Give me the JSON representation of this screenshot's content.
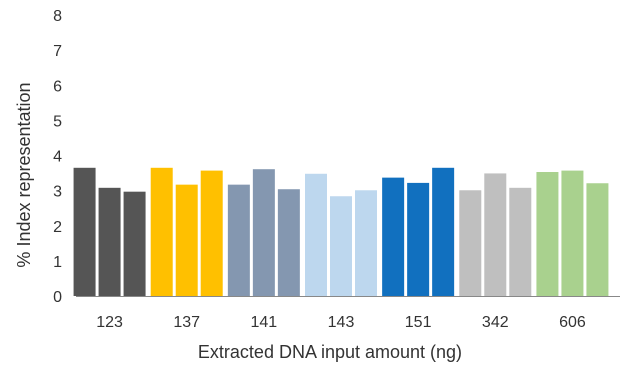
{
  "chart_data": {
    "type": "bar",
    "title": "",
    "xlabel": "Extracted DNA input amount (ng)",
    "ylabel": "% Index representation",
    "ylim": [
      0,
      8
    ],
    "yticks": [
      0,
      1,
      2,
      3,
      4,
      5,
      6,
      7,
      8
    ],
    "grid": false,
    "legend": "none",
    "groups": [
      {
        "category": "123",
        "color": "#555555",
        "values": [
          3.65,
          3.08,
          2.97
        ]
      },
      {
        "category": "137",
        "color": "#FFC000",
        "values": [
          3.65,
          3.17,
          3.57
        ]
      },
      {
        "category": "141",
        "color": "#8497B0",
        "values": [
          3.17,
          3.61,
          3.04
        ]
      },
      {
        "category": "143",
        "color": "#BDD7EE",
        "values": [
          3.48,
          2.84,
          3.01
        ]
      },
      {
        "category": "151",
        "color": "#1170BF",
        "values": [
          3.37,
          3.22,
          3.65
        ]
      },
      {
        "category": "342",
        "color": "#BFBFBF",
        "values": [
          3.01,
          3.49,
          3.08
        ]
      },
      {
        "category": "606",
        "color": "#A9D18E",
        "values": [
          3.53,
          3.57,
          3.21
        ]
      }
    ]
  }
}
